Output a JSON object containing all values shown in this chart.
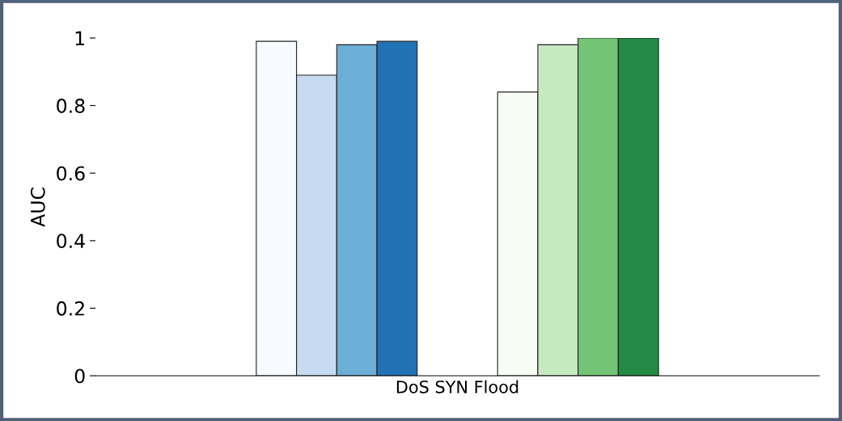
{
  "chart_data": {
    "type": "bar",
    "ylabel": "AUC",
    "categories": [
      "DoS SYN Flood"
    ],
    "series": [
      {
        "color": "#f7fbff",
        "values": [
          0.99
        ]
      },
      {
        "color": "#c6dbef",
        "values": [
          0.89
        ]
      },
      {
        "color": "#6baed6",
        "values": [
          0.98
        ]
      },
      {
        "color": "#2171b5",
        "values": [
          0.99
        ]
      },
      {
        "color": "#f7fcf5",
        "values": [
          0.84
        ]
      },
      {
        "color": "#c7e9c0",
        "values": [
          0.98
        ]
      },
      {
        "color": "#74c476",
        "values": [
          1.0
        ]
      },
      {
        "color": "#238b45",
        "values": [
          1.0
        ]
      }
    ],
    "ylim": [
      0,
      1
    ],
    "yticks": [
      0,
      0.2,
      0.4,
      0.6,
      0.8,
      1
    ],
    "grid": false,
    "legend": false
  }
}
